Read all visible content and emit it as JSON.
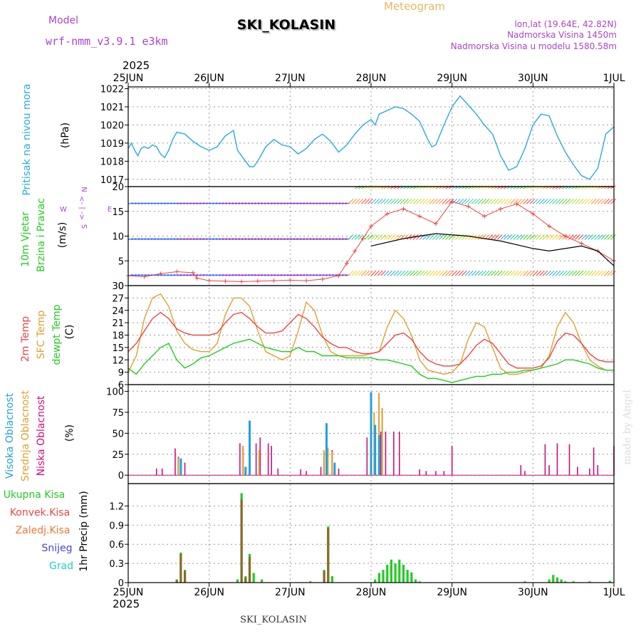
{
  "header": {
    "model_label": "Model",
    "model_name": "wrf-nmm_v3.9.1 e3km",
    "meteogram_label": "Meteogram",
    "station": "SKI_KOLASIN",
    "lonlat": "lon,lat (19.64E, 42.82N)",
    "altitude": "Nadmorska Visina 1450m",
    "model_altitude": "Nadmorska Visina u modelu 1580.58m",
    "year_top": "2025",
    "year_bottom": "2025",
    "footer_station": "SKI_KOLASIN",
    "watermark": "made by Angel"
  },
  "colors": {
    "pressure": "#2aa8e0",
    "temp2m": "#ee4444",
    "sfc": "#e0a030",
    "dewpt": "#22cc22",
    "high_cloud": "#22a0e0",
    "mid_cloud": "#e0a030",
    "low_cloud": "#cc1177",
    "total_precip": "#22cc22",
    "conv_precip": "#ee4444",
    "strat_precip": "#ee7733",
    "snow": "#4444dd",
    "hail": "#22cccc",
    "wind_label": "#22cc22",
    "wind_dir": "#aa44cc"
  },
  "chart_data": {
    "type": "line",
    "date_ticks": [
      "25JUN",
      "26JUN",
      "27JUN",
      "28JUN",
      "29JUN",
      "30JUN",
      "1JUL"
    ],
    "panels": {
      "pressure": {
        "label": "Pritisak na nivou mora",
        "unit": "(hPa)",
        "ylim": [
          1016.6,
          1022.1
        ],
        "yticks": [
          "1022",
          "1021",
          "1020",
          "1019",
          "1018",
          "1017"
        ],
        "x_days": [
          0,
          0.04,
          0.08,
          0.12,
          0.16,
          0.2,
          0.25,
          0.3,
          0.35,
          0.4,
          0.45,
          0.5,
          0.55,
          0.6,
          0.7,
          0.8,
          0.9,
          1.0,
          1.1,
          1.2,
          1.3,
          1.35,
          1.4,
          1.45,
          1.5,
          1.55,
          1.6,
          1.7,
          1.8,
          1.9,
          2.0,
          2.1,
          2.2,
          2.3,
          2.4,
          2.5,
          2.6,
          2.7,
          2.8,
          2.9,
          3.0,
          3.05,
          3.1,
          3.2,
          3.3,
          3.4,
          3.5,
          3.6,
          3.7,
          3.75,
          3.8,
          3.9,
          4.0,
          4.1,
          4.2,
          4.3,
          4.4,
          4.5,
          4.6,
          4.7,
          4.8,
          4.9,
          5.0,
          5.1,
          5.2,
          5.3,
          5.4,
          5.5,
          5.6,
          5.7,
          5.8,
          5.9,
          6.0
        ],
        "values": [
          1018.7,
          1019.0,
          1018.6,
          1018.3,
          1018.7,
          1018.8,
          1018.7,
          1018.9,
          1018.8,
          1018.4,
          1018.2,
          1018.6,
          1019.2,
          1019.6,
          1019.5,
          1019.1,
          1018.8,
          1018.6,
          1018.8,
          1019.4,
          1019.7,
          1018.6,
          1018.3,
          1018.0,
          1017.7,
          1017.7,
          1018.0,
          1018.8,
          1019.2,
          1018.9,
          1018.8,
          1018.4,
          1018.7,
          1019.2,
          1019.5,
          1019.1,
          1018.5,
          1018.9,
          1019.5,
          1020.0,
          1020.3,
          1020.0,
          1020.6,
          1020.8,
          1021.0,
          1020.9,
          1020.6,
          1020.2,
          1019.2,
          1018.8,
          1018.9,
          1020.0,
          1021.0,
          1021.6,
          1021.1,
          1020.6,
          1020.0,
          1019.5,
          1018.3,
          1017.5,
          1017.7,
          1018.7,
          1020.0,
          1020.6,
          1020.5,
          1019.4,
          1018.5,
          1017.8,
          1017.2,
          1017.0,
          1017.6,
          1019.5,
          1019.9
        ],
        "pressure_x_note": "days from 25JUN 00Z"
      },
      "wind": {
        "label_1": "10m Vjetar",
        "label_2": "Brzina i Pravac",
        "unit": "(m/s)",
        "compass": [
          "N",
          "W",
          "<- | ->",
          "E",
          "S"
        ],
        "ylim": [
          0,
          20
        ],
        "yticks": [
          "20",
          "15",
          "10",
          "5",
          "0"
        ],
        "speed_x_days": [
          0,
          0.2,
          0.4,
          0.6,
          0.8,
          0.85,
          1.0,
          1.2,
          1.4,
          1.6,
          1.8,
          2.0,
          2.2,
          2.4,
          2.6,
          2.7,
          2.8,
          2.9,
          3.0,
          3.2,
          3.4,
          3.6,
          3.8,
          4.0,
          4.2,
          4.4,
          4.6,
          4.8,
          5.0,
          5.2,
          5.4,
          5.6,
          5.8,
          6.0
        ],
        "speed": [
          2.0,
          1.8,
          2.4,
          2.8,
          2.6,
          1.5,
          1.0,
          0.9,
          0.8,
          0.9,
          1.0,
          1.1,
          1.0,
          1.3,
          2.0,
          4.5,
          7.0,
          9.5,
          12.0,
          14.5,
          15.5,
          14.0,
          12.5,
          17.0,
          16.0,
          14.0,
          15.5,
          16.5,
          14.5,
          12.0,
          10.0,
          8.5,
          7.0,
          5.0
        ],
        "gust_x_days": [
          3.0,
          3.4,
          3.8,
          4.2,
          4.6,
          5.0,
          5.2,
          5.4,
          5.6,
          5.8,
          6.0
        ],
        "gust": [
          8.0,
          9.5,
          10.5,
          10.0,
          9.0,
          7.5,
          7.0,
          7.5,
          8.0,
          7.0,
          4.0
        ]
      },
      "temperature": {
        "label_1": "2m Temp",
        "label_2": "SFC Temp",
        "label_3": "dewpt Temp",
        "unit": "(C)",
        "ylim": [
          6,
          30
        ],
        "yticks": [
          "30",
          "27",
          "24",
          "21",
          "18",
          "15",
          "12",
          "9",
          "6"
        ],
        "x_days": [
          0,
          0.1,
          0.2,
          0.3,
          0.4,
          0.5,
          0.6,
          0.7,
          0.8,
          0.9,
          1.0,
          1.1,
          1.2,
          1.3,
          1.4,
          1.5,
          1.6,
          1.7,
          1.8,
          1.9,
          2.0,
          2.1,
          2.2,
          2.3,
          2.4,
          2.5,
          2.6,
          2.7,
          2.8,
          2.9,
          3.0,
          3.1,
          3.2,
          3.3,
          3.4,
          3.5,
          3.6,
          3.7,
          3.8,
          3.9,
          4.0,
          4.1,
          4.2,
          4.3,
          4.4,
          4.5,
          4.6,
          4.7,
          4.8,
          4.9,
          5.0,
          5.1,
          5.2,
          5.3,
          5.4,
          5.5,
          5.6,
          5.7,
          5.8,
          5.9,
          6.0
        ],
        "t2m": [
          14,
          16,
          19,
          22,
          23.5,
          22,
          19.5,
          18.5,
          18,
          18,
          18,
          18.5,
          21,
          23,
          23.5,
          22,
          20,
          18.5,
          18.5,
          19,
          21,
          23,
          22,
          20,
          17.5,
          16,
          15,
          15,
          14,
          13.5,
          13.5,
          14,
          16,
          18,
          18.5,
          17,
          14,
          12,
          11,
          10.5,
          10.5,
          11,
          13,
          15.5,
          17,
          16,
          13.5,
          11,
          10,
          10,
          10,
          10.5,
          12.5,
          16.5,
          18.5,
          18,
          16,
          13.5,
          12,
          11.5,
          11.5
        ],
        "sfc": [
          9,
          13,
          22,
          27,
          28,
          25,
          19,
          16,
          14.5,
          14,
          14,
          16,
          23,
          27,
          27,
          25,
          19,
          14,
          13,
          12,
          13,
          19,
          26,
          24,
          18,
          14,
          13,
          13,
          13,
          13,
          13.5,
          14,
          20,
          24,
          22,
          18,
          12,
          9.5,
          9,
          8.5,
          9,
          11,
          17,
          21,
          20,
          15,
          10,
          8.5,
          8.5,
          9,
          9.5,
          10,
          13,
          20,
          23.5,
          21,
          16,
          12,
          10.5,
          9.5,
          9.5
        ],
        "dewpt": [
          10,
          8.5,
          11,
          13,
          15,
          16,
          12,
          10,
          11,
          12.5,
          13,
          14,
          15,
          16,
          16.5,
          17,
          16,
          15,
          14.5,
          14,
          14,
          15,
          14,
          14,
          13,
          13,
          13,
          12.5,
          12.5,
          12.5,
          12.5,
          12,
          12,
          11.5,
          11,
          10.5,
          8.5,
          7.5,
          7.5,
          7,
          6.5,
          7,
          7.5,
          8,
          8,
          8.5,
          8.5,
          9,
          9,
          9.5,
          9.5,
          10,
          10.5,
          11,
          12,
          12,
          11.5,
          11,
          10,
          9.5,
          9.5
        ]
      },
      "clouds": {
        "label_1": "Visoka Oblacnost",
        "label_2": "Srednja Oblacnost",
        "label_3": "Niska Oblacnost",
        "unit": "(%)",
        "ylim": [
          0,
          100
        ],
        "yticks": [
          "100",
          "75",
          "50",
          "25",
          "0"
        ],
        "low_x_days": [
          0.35,
          0.42,
          0.58,
          0.62,
          0.65,
          0.7,
          1.38,
          1.42,
          1.58,
          1.63,
          1.73,
          1.77,
          1.85,
          2.13,
          2.2,
          2.38,
          2.42,
          2.52,
          2.6,
          2.95,
          3.0,
          3.05,
          3.12,
          3.18,
          3.28,
          3.35,
          3.6,
          3.68,
          3.8,
          3.9,
          4.0,
          4.85,
          4.9,
          5.15,
          5.2,
          5.3,
          5.45,
          5.55,
          5.7,
          5.75,
          5.8,
          6.0
        ],
        "low_values": [
          8,
          8,
          32,
          22,
          18,
          15,
          38,
          33,
          38,
          45,
          38,
          35,
          8,
          7,
          5,
          10,
          28,
          30,
          8,
          45,
          52,
          48,
          52,
          52,
          52,
          52,
          7,
          5,
          5,
          5,
          35,
          12,
          5,
          37,
          12,
          38,
          37,
          10,
          8,
          33,
          12,
          35
        ],
        "mid_x_days": [
          0.6,
          1.4,
          1.6,
          2.4,
          2.45,
          2.5,
          3.02,
          3.08,
          3.12
        ],
        "mid_values": [
          20,
          35,
          30,
          30,
          33,
          28,
          75,
          98,
          80
        ],
        "high_x_days": [
          0.65,
          1.45,
          1.5,
          2.45,
          2.55,
          3.0,
          3.05,
          3.1
        ],
        "high_values": [
          20,
          10,
          65,
          62,
          15,
          99,
          60,
          48
        ]
      },
      "precip": {
        "label_1": "Ukupna Kisa",
        "label_2": "Konvek.Kisa",
        "label_3": "Zaledj.Kisa",
        "label_4": "Snijeg",
        "label_5": "Grad",
        "unit": "1hr Precip (mm)",
        "ylim": [
          0,
          1.55
        ],
        "yticks": [
          "1.2",
          "0.9",
          "0.6",
          "0.3",
          "0"
        ],
        "total_x_days": [
          0.6,
          0.65,
          0.7,
          1.35,
          1.4,
          1.45,
          1.5,
          1.55,
          1.65,
          2.25,
          2.42,
          2.47,
          2.52,
          3.05,
          3.1,
          3.15,
          3.2,
          3.25,
          3.3,
          3.35,
          3.4,
          3.45,
          3.5,
          3.55,
          3.6,
          4.9,
          5.2,
          5.25,
          5.3,
          5.35,
          5.4,
          5.5,
          5.7,
          5.95
        ],
        "total_values": [
          0.05,
          0.47,
          0.2,
          0.05,
          1.4,
          0.1,
          0.45,
          0.15,
          0.05,
          0.02,
          0.2,
          0.88,
          0.1,
          0.05,
          0.15,
          0.2,
          0.28,
          0.36,
          0.3,
          0.36,
          0.28,
          0.2,
          0.16,
          0.05,
          0.02,
          0.02,
          0.05,
          0.12,
          0.08,
          0.05,
          0.02,
          0.02,
          0.02,
          0.03
        ],
        "conv_x_days": [
          0.6,
          0.65,
          0.7,
          1.4,
          1.45,
          1.5,
          2.42,
          2.47
        ],
        "conv_values": [
          0.04,
          0.45,
          0.18,
          1.3,
          0.08,
          0.4,
          0.18,
          0.85
        ]
      }
    }
  }
}
